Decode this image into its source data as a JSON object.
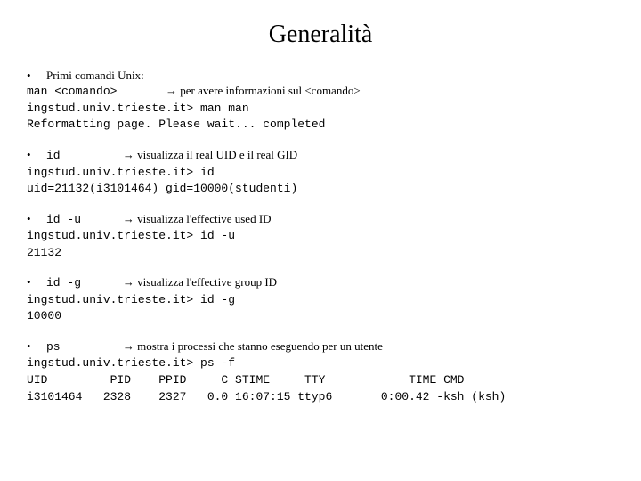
{
  "title": "Generalità",
  "sections": [
    {
      "bullet": "•",
      "intro_serif": "Primi comandi Unix:",
      "lines": [
        {
          "mono_pre": "man <comando>       ",
          "arrow": "→",
          "serif_post": " per avere informazioni sul <comando>"
        },
        {
          "mono_pre": "ingstud.univ.trieste.it> man man"
        },
        {
          "mono_pre": "Reformatting page. Please wait... completed"
        }
      ]
    },
    {
      "bullet": "•",
      "lines": [
        {
          "mono_pre": "id         ",
          "arrow": "→",
          "serif_post": " visualizza il real UID e il real GID"
        },
        {
          "mono_pre": "ingstud.univ.trieste.it> id"
        },
        {
          "mono_pre": "uid=21132(i3101464) gid=10000(studenti)"
        }
      ]
    },
    {
      "bullet": "•",
      "lines": [
        {
          "mono_pre": "id -u      ",
          "arrow": "→",
          "serif_post": " visualizza l'effective used ID"
        },
        {
          "mono_pre": "ingstud.univ.trieste.it> id -u"
        },
        {
          "mono_pre": "21132"
        }
      ]
    },
    {
      "bullet": "•",
      "lines": [
        {
          "mono_pre": "id -g      ",
          "arrow": "→",
          "serif_post": " visualizza l'effective group ID"
        },
        {
          "mono_pre": "ingstud.univ.trieste.it> id -g"
        },
        {
          "mono_pre": "10000"
        }
      ]
    },
    {
      "bullet": "•",
      "lines": [
        {
          "mono_pre": "ps         ",
          "arrow": "→",
          "serif_post": " mostra i processi che stanno eseguendo per un utente"
        },
        {
          "mono_pre": "ingstud.univ.trieste.it> ps -f"
        },
        {
          "mono_pre": "UID         PID    PPID     C STIME     TTY            TIME CMD"
        },
        {
          "mono_pre": "i3101464   2328    2327   0.0 16:07:15 ttyp6       0:00.42 -ksh (ksh)"
        }
      ]
    }
  ]
}
